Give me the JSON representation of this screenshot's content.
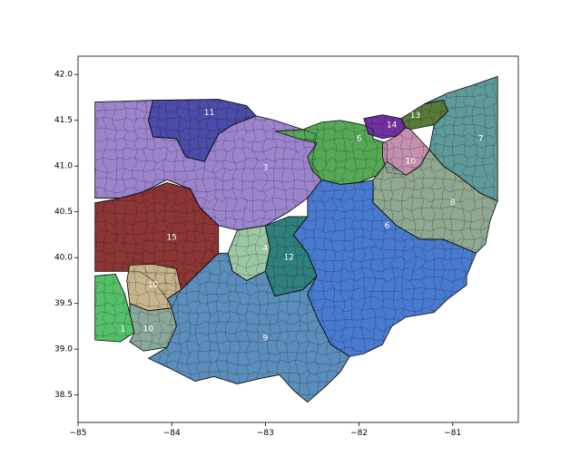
{
  "axes": {
    "xlim": [
      -85.0,
      -80.3
    ],
    "ylim": [
      38.2,
      42.2
    ],
    "x_ticks": [
      -85,
      -84,
      -83,
      -82,
      -81
    ],
    "x_tick_labels": [
      "−85",
      "−84",
      "−83",
      "−82",
      "−81"
    ],
    "y_ticks": [
      38.5,
      39.0,
      39.5,
      40.0,
      40.5,
      41.0,
      41.5,
      42.0
    ],
    "y_tick_labels": [
      "38.5",
      "39.0",
      "39.5",
      "40.0",
      "40.5",
      "41.0",
      "41.5",
      "42.0"
    ]
  },
  "districts": [
    {
      "label": "11",
      "color": "#4b4ba8",
      "label_at": [
        -83.6,
        41.58
      ],
      "polygon": [
        [
          -84.2,
          41.72
        ],
        [
          -83.5,
          41.73
        ],
        [
          -83.2,
          41.66
        ],
        [
          -83.1,
          41.55
        ],
        [
          -83.35,
          41.45
        ],
        [
          -83.5,
          41.35
        ],
        [
          -83.65,
          41.05
        ],
        [
          -83.85,
          41.1
        ],
        [
          -83.95,
          41.3
        ],
        [
          -84.2,
          41.32
        ],
        [
          -84.25,
          41.5
        ]
      ]
    },
    {
      "label": "3",
      "color": "#9b84cc",
      "label_at": [
        -83.0,
        40.98
      ],
      "polygon": [
        [
          -84.82,
          41.7
        ],
        [
          -84.2,
          41.72
        ],
        [
          -84.25,
          41.5
        ],
        [
          -84.2,
          41.32
        ],
        [
          -83.95,
          41.3
        ],
        [
          -83.85,
          41.1
        ],
        [
          -83.65,
          41.05
        ],
        [
          -83.5,
          41.35
        ],
        [
          -83.35,
          41.45
        ],
        [
          -83.1,
          41.55
        ],
        [
          -82.9,
          41.5
        ],
        [
          -82.6,
          41.4
        ],
        [
          -82.45,
          41.35
        ],
        [
          -82.5,
          41.05
        ],
        [
          -82.4,
          40.85
        ],
        [
          -82.55,
          40.65
        ],
        [
          -82.75,
          40.5
        ],
        [
          -83.0,
          40.35
        ],
        [
          -83.3,
          40.3
        ],
        [
          -83.5,
          40.35
        ],
        [
          -83.7,
          40.55
        ],
        [
          -83.8,
          40.75
        ],
        [
          -84.05,
          40.85
        ],
        [
          -84.3,
          40.72
        ],
        [
          -84.55,
          40.65
        ],
        [
          -84.82,
          40.65
        ]
      ]
    },
    {
      "label": "6",
      "color": "#55a855",
      "label_at": [
        -82.0,
        41.3
      ],
      "polygon": [
        [
          -82.9,
          41.38
        ],
        [
          -82.6,
          41.4
        ],
        [
          -82.4,
          41.48
        ],
        [
          -82.2,
          41.5
        ],
        [
          -81.95,
          41.45
        ],
        [
          -81.85,
          41.4
        ],
        [
          -81.85,
          41.3
        ],
        [
          -81.7,
          41.25
        ],
        [
          -81.7,
          41.05
        ],
        [
          -81.8,
          40.9
        ],
        [
          -82.0,
          40.82
        ],
        [
          -82.2,
          40.8
        ],
        [
          -82.4,
          40.85
        ],
        [
          -82.5,
          40.95
        ],
        [
          -82.55,
          41.1
        ],
        [
          -82.45,
          41.25
        ],
        [
          -82.65,
          41.3
        ]
      ]
    },
    {
      "label": "14",
      "color": "#7030a0",
      "label_at": [
        -81.65,
        41.45
      ],
      "polygon": [
        [
          -81.95,
          41.52
        ],
        [
          -81.75,
          41.56
        ],
        [
          -81.55,
          41.52
        ],
        [
          -81.5,
          41.42
        ],
        [
          -81.6,
          41.33
        ],
        [
          -81.75,
          41.3
        ],
        [
          -81.9,
          41.35
        ]
      ]
    },
    {
      "label": "13",
      "color": "#5a7a3a",
      "label_at": [
        -81.4,
        41.55
      ],
      "polygon": [
        [
          -81.55,
          41.52
        ],
        [
          -81.3,
          41.68
        ],
        [
          -81.1,
          41.72
        ],
        [
          -81.05,
          41.6
        ],
        [
          -81.2,
          41.45
        ],
        [
          -81.45,
          41.4
        ],
        [
          -81.5,
          41.42
        ]
      ]
    },
    {
      "label": "7",
      "color": "#5f9a9a",
      "label_at": [
        -80.7,
        41.3
      ],
      "polygon": [
        [
          -81.3,
          41.68
        ],
        [
          -81.05,
          41.8
        ],
        [
          -80.8,
          41.88
        ],
        [
          -80.52,
          41.98
        ],
        [
          -80.52,
          40.62
        ],
        [
          -80.7,
          40.7
        ],
        [
          -80.95,
          40.9
        ],
        [
          -81.1,
          41.0
        ],
        [
          -81.25,
          41.18
        ],
        [
          -81.2,
          41.45
        ],
        [
          -81.05,
          41.6
        ],
        [
          -81.1,
          41.72
        ]
      ]
    },
    {
      "label": "10",
      "color": "#c590b0",
      "label_at": [
        -81.45,
        41.05
      ],
      "polygon": [
        [
          -81.75,
          41.25
        ],
        [
          -81.6,
          41.33
        ],
        [
          -81.5,
          41.42
        ],
        [
          -81.45,
          41.4
        ],
        [
          -81.25,
          41.18
        ],
        [
          -81.35,
          41.0
        ],
        [
          -81.5,
          40.9
        ],
        [
          -81.7,
          40.93
        ],
        [
          -81.75,
          41.1
        ]
      ]
    },
    {
      "label": "8",
      "color": "#8fa88f",
      "label_at": [
        -81.0,
        40.6
      ],
      "polygon": [
        [
          -81.7,
          41.05
        ],
        [
          -81.5,
          40.9
        ],
        [
          -81.35,
          41.0
        ],
        [
          -81.25,
          41.18
        ],
        [
          -81.1,
          41.0
        ],
        [
          -80.95,
          40.9
        ],
        [
          -80.7,
          40.7
        ],
        [
          -80.52,
          40.62
        ],
        [
          -80.6,
          40.4
        ],
        [
          -80.65,
          40.15
        ],
        [
          -80.75,
          40.05
        ],
        [
          -81.1,
          40.2
        ],
        [
          -81.35,
          40.2
        ],
        [
          -81.6,
          40.35
        ],
        [
          -81.85,
          40.6
        ],
        [
          -81.85,
          40.85
        ]
      ]
    },
    {
      "label": "6",
      "color": "#4a7ad0",
      "label_at": [
        -81.7,
        40.35
      ],
      "polygon": [
        [
          -82.4,
          40.85
        ],
        [
          -82.2,
          40.8
        ],
        [
          -82.0,
          40.82
        ],
        [
          -81.85,
          40.85
        ],
        [
          -81.85,
          40.6
        ],
        [
          -81.6,
          40.35
        ],
        [
          -81.35,
          40.2
        ],
        [
          -81.1,
          40.2
        ],
        [
          -80.75,
          40.05
        ],
        [
          -80.85,
          39.8
        ],
        [
          -80.85,
          39.7
        ],
        [
          -81.05,
          39.55
        ],
        [
          -81.2,
          39.4
        ],
        [
          -81.5,
          39.35
        ],
        [
          -81.65,
          39.25
        ],
        [
          -81.75,
          39.05
        ],
        [
          -81.95,
          38.95
        ],
        [
          -82.1,
          38.92
        ],
        [
          -82.3,
          39.05
        ],
        [
          -82.45,
          39.35
        ],
        [
          -82.55,
          39.6
        ],
        [
          -82.45,
          39.8
        ],
        [
          -82.55,
          40.05
        ],
        [
          -82.7,
          40.25
        ],
        [
          -82.55,
          40.45
        ],
        [
          -82.55,
          40.65
        ]
      ]
    },
    {
      "label": "15",
      "color": "#8b3535",
      "label_at": [
        -84.0,
        40.22
      ],
      "polygon": [
        [
          -84.82,
          40.6
        ],
        [
          -84.55,
          40.65
        ],
        [
          -84.3,
          40.72
        ],
        [
          -84.05,
          40.82
        ],
        [
          -83.8,
          40.75
        ],
        [
          -83.7,
          40.55
        ],
        [
          -83.5,
          40.35
        ],
        [
          -83.5,
          40.05
        ],
        [
          -83.7,
          39.85
        ],
        [
          -83.9,
          39.65
        ],
        [
          -84.05,
          39.55
        ],
        [
          -84.2,
          39.75
        ],
        [
          -84.35,
          39.85
        ],
        [
          -84.55,
          39.85
        ],
        [
          -84.82,
          39.85
        ]
      ]
    },
    {
      "label": "4",
      "color": "#9cc7a3",
      "label_at": [
        -83.0,
        40.1
      ],
      "polygon": [
        [
          -83.3,
          40.3
        ],
        [
          -83.0,
          40.35
        ],
        [
          -82.95,
          40.1
        ],
        [
          -83.0,
          39.85
        ],
        [
          -83.2,
          39.75
        ],
        [
          -83.35,
          39.85
        ],
        [
          -83.4,
          40.05
        ]
      ]
    },
    {
      "label": "12",
      "color": "#2f7f7f",
      "label_at": [
        -82.75,
        40.0
      ],
      "polygon": [
        [
          -83.0,
          40.35
        ],
        [
          -82.75,
          40.45
        ],
        [
          -82.55,
          40.45
        ],
        [
          -82.7,
          40.25
        ],
        [
          -82.55,
          40.05
        ],
        [
          -82.45,
          39.8
        ],
        [
          -82.6,
          39.65
        ],
        [
          -82.9,
          39.58
        ],
        [
          -83.0,
          39.85
        ],
        [
          -82.95,
          40.1
        ]
      ]
    },
    {
      "label": "10",
      "color": "#c8b48c",
      "label_at": [
        -84.2,
        39.7
      ],
      "polygon": [
        [
          -84.45,
          39.92
        ],
        [
          -84.2,
          39.93
        ],
        [
          -83.95,
          39.88
        ],
        [
          -83.9,
          39.65
        ],
        [
          -84.0,
          39.45
        ],
        [
          -84.25,
          39.42
        ],
        [
          -84.45,
          39.5
        ],
        [
          -84.48,
          39.75
        ]
      ]
    },
    {
      "label": "1",
      "color": "#55c06a",
      "label_at": [
        -84.52,
        39.22
      ],
      "polygon": [
        [
          -84.82,
          39.8
        ],
        [
          -84.6,
          39.82
        ],
        [
          -84.5,
          39.6
        ],
        [
          -84.45,
          39.4
        ],
        [
          -84.4,
          39.18
        ],
        [
          -84.55,
          39.08
        ],
        [
          -84.82,
          39.1
        ]
      ]
    },
    {
      "label": "10",
      "color": "#8aa89a",
      "label_at": [
        -84.25,
        39.22
      ],
      "polygon": [
        [
          -84.45,
          39.5
        ],
        [
          -84.25,
          39.42
        ],
        [
          -84.0,
          39.45
        ],
        [
          -83.95,
          39.25
        ],
        [
          -84.05,
          39.02
        ],
        [
          -84.3,
          38.98
        ],
        [
          -84.45,
          39.08
        ],
        [
          -84.4,
          39.18
        ],
        [
          -84.45,
          39.4
        ]
      ]
    },
    {
      "label": "9",
      "color": "#5b8ebb",
      "label_at": [
        -83.0,
        39.12
      ],
      "polygon": [
        [
          -84.05,
          39.55
        ],
        [
          -83.9,
          39.65
        ],
        [
          -83.7,
          39.85
        ],
        [
          -83.5,
          40.05
        ],
        [
          -83.4,
          40.05
        ],
        [
          -83.35,
          39.85
        ],
        [
          -83.2,
          39.75
        ],
        [
          -83.0,
          39.85
        ],
        [
          -82.9,
          39.58
        ],
        [
          -82.6,
          39.65
        ],
        [
          -82.45,
          39.8
        ],
        [
          -82.55,
          39.6
        ],
        [
          -82.45,
          39.35
        ],
        [
          -82.3,
          39.05
        ],
        [
          -82.1,
          38.92
        ],
        [
          -82.2,
          38.75
        ],
        [
          -82.35,
          38.6
        ],
        [
          -82.55,
          38.42
        ],
        [
          -82.7,
          38.55
        ],
        [
          -82.85,
          38.72
        ],
        [
          -83.05,
          38.68
        ],
        [
          -83.3,
          38.62
        ],
        [
          -83.55,
          38.7
        ],
        [
          -83.75,
          38.65
        ],
        [
          -84.0,
          38.78
        ],
        [
          -84.25,
          38.9
        ],
        [
          -84.05,
          39.02
        ],
        [
          -83.95,
          39.25
        ],
        [
          -84.0,
          39.45
        ]
      ]
    }
  ]
}
